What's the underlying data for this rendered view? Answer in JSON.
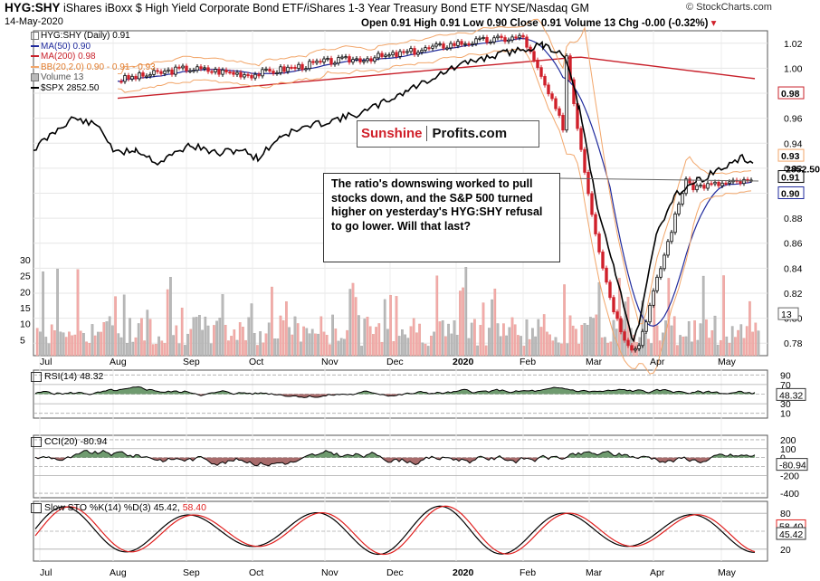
{
  "header": {
    "symbol": "HYG:SHY",
    "description": "iShares iBoxx $ High Yield Corporate Bond ETF/iShares 1-3 Year Treasury Bond ETF",
    "exchange": "NYSE/Nasdaq GM",
    "date": "14-May-2020",
    "open_label": "Open",
    "open": "0.91",
    "high_label": "High",
    "high": "0.91",
    "low_label": "Low",
    "low": "0.90",
    "close_label": "Close",
    "close": "0.91",
    "volume_label": "Volume",
    "volume": "13",
    "chg_label": "Chg",
    "chg": "-0.00 (-0.32%)",
    "brand": "© StockCharts.com"
  },
  "legend": {
    "main": "HYG:SHY (Daily) 0.91",
    "ma50": "MA(50) 0.90",
    "ma200": "MA(200) 0.98",
    "bb": "BB(20,2.0) 0.90 - 0.91 - 0.93",
    "volume": "Volume 13",
    "spx": "$SPX 2852.50"
  },
  "watermark": {
    "part1": "Sunshine",
    "part2": "Profits.com"
  },
  "annotation": "The ratio's downswing worked to pull stocks down, and the S&P 500 turned higher on yesterday's HYG:SHY refusal to go lower. Will that last?",
  "colors": {
    "ma50": "#1f2a9c",
    "ma200": "#c8202a",
    "bb": "#f2a66a",
    "spx": "#000000",
    "up_candle": "#000000",
    "down_candle": "#d0202a",
    "vol_up": "#b9b9b9",
    "vol_down": "#f2aaaa",
    "osc_fill_up": "#3f7a3f",
    "osc_fill_down": "#8b3a3a",
    "stoch_k": "#000000",
    "stoch_d": "#e0201f"
  },
  "chart_data": [
    {
      "type": "candlestick",
      "title": "HYG:SHY (Daily) 0.91",
      "x_months": [
        "Jul",
        "Aug",
        "Sep",
        "Oct",
        "Nov",
        "Dec",
        "2020",
        "Feb",
        "Mar",
        "Apr",
        "May"
      ],
      "y_ticks": [
        1.02,
        1.0,
        0.98,
        0.96,
        0.94,
        0.92,
        0.9,
        0.88,
        0.86,
        0.84,
        0.82,
        0.8,
        0.78
      ],
      "ylim": [
        0.77,
        1.03
      ],
      "close_by_month": [
        0.975,
        0.99,
        1.0,
        0.995,
        1.005,
        1.01,
        1.02,
        1.025,
        0.95,
        0.89,
        0.905,
        0.91
      ],
      "month_points_x": [
        "Jul",
        "Aug",
        "Sep",
        "Oct",
        "Nov",
        "Dec",
        "2020",
        "Feb",
        "Mar-early",
        "Mar-late",
        "Apr",
        "May"
      ],
      "series": [
        {
          "name": "MA(50)",
          "value": 0.9
        },
        {
          "name": "MA(200)",
          "value": 0.98
        },
        {
          "name": "BB(20,2.0)",
          "lower": 0.9,
          "middle": 0.91,
          "upper": 0.93
        },
        {
          "name": "$SPX",
          "value": 2852.5
        }
      ],
      "right_labels": [
        "0.98",
        "0.93",
        "0.91",
        "0.90",
        "2852.50"
      ],
      "volume_ticks": [
        30,
        25,
        20,
        15,
        10,
        5
      ],
      "volume_last": 13
    },
    {
      "type": "line",
      "title": "RSI(14) 48.32",
      "y_ticks": [
        90,
        70,
        50,
        30,
        10
      ],
      "ylim": [
        0,
        100
      ],
      "last": 48.32
    },
    {
      "type": "line",
      "title": "CCI(20) -80.94",
      "y_ticks": [
        200,
        100,
        0,
        -100,
        -200,
        -400
      ],
      "ylim": [
        -450,
        250
      ],
      "last": -80.94
    },
    {
      "type": "line",
      "title": "Slow STO %K(14) %D(3) 45.42, 58.40",
      "y_ticks": [
        80,
        50,
        20
      ],
      "ylim": [
        0,
        100
      ],
      "series": [
        {
          "name": "%K(14)",
          "last": 45.42
        },
        {
          "name": "%D(3)",
          "last": 58.4
        }
      ]
    }
  ],
  "labels": {
    "rsi": "RSI(14) 48.32",
    "cci": "CCI(20) -80.94",
    "sto_prefix": "Slow STO %K(14) %D(3) 45.42,",
    "sto_d": "58.40",
    "vol_right": "13",
    "rsi_right": "48.32",
    "cci_right": "-80.94",
    "sto_k_right": "45.42",
    "sto_d_right": "58.40",
    "main_right_ma200": "0.98",
    "main_right_bbu": "0.93",
    "main_right_close": "0.91",
    "main_right_bbl": "0.90",
    "main_right_spx": "2852.50"
  }
}
